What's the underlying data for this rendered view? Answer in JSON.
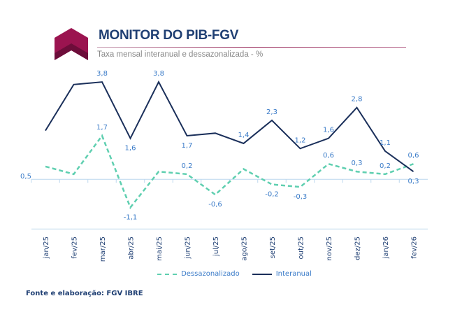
{
  "header": {
    "title": "MONITOR DO PIB-FGV",
    "subtitle": "Taxa mensal interanual e dessazonalizada - %"
  },
  "footer": {
    "source": "Fonte e elaboração: FGV IBRE"
  },
  "chart_data": {
    "type": "line",
    "title": "MONITOR DO PIB-FGV",
    "subtitle": "Taxa mensal interanual e dessazonalizada - %",
    "categories": [
      "jan/25",
      "fev/25",
      "mar/25",
      "abr/25",
      "mai/25",
      "jun/25",
      "jul/25",
      "ago/25",
      "set/25",
      "out/25",
      "nov/25",
      "dez/25",
      "jan/26",
      "fev/26"
    ],
    "ylim": [
      -2,
      4.5
    ],
    "grid": false,
    "legend_placement": "bottom",
    "series": [
      {
        "name": "Dessazonalizado",
        "color": "#5fcfb0",
        "dash": true,
        "values": [
          0.5,
          0.2,
          1.7,
          -1.1,
          0.3,
          0.2,
          -0.6,
          0.4,
          -0.2,
          -0.3,
          0.6,
          0.3,
          0.2,
          0.6
        ],
        "labels": [
          "0,5",
          null,
          "1,7",
          "-1,1",
          null,
          "0,2",
          "-0,6",
          null,
          "-0,2",
          "-0,3",
          "0,6",
          "0,3",
          "0,2",
          "0,6"
        ]
      },
      {
        "name": "Interanual",
        "color": "#1a2f5a",
        "dash": false,
        "values": [
          1.9,
          3.7,
          3.8,
          1.6,
          3.8,
          1.7,
          1.8,
          1.4,
          2.3,
          1.2,
          1.6,
          2.8,
          1.1,
          0.3
        ],
        "labels": [
          null,
          null,
          "3,8",
          "1,6",
          "3,8",
          "1,7",
          null,
          "1,4",
          "2,3",
          "1,2",
          "1,6",
          "2,8",
          "1,1",
          "0,3"
        ]
      }
    ]
  }
}
